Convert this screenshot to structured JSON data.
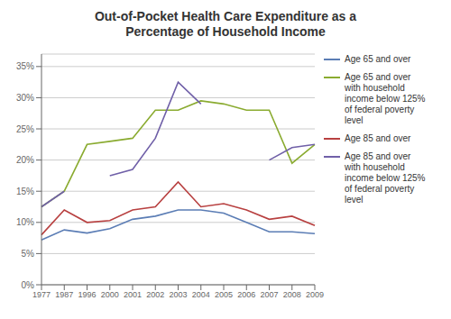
{
  "chart_data": {
    "type": "line",
    "title": "Out-of-Pocket Health Care Expenditure as a\nPercentage of Household Income",
    "categories": [
      "1977",
      "1987",
      "1996",
      "2000",
      "2001",
      "2002",
      "2003",
      "2004",
      "2005",
      "2006",
      "2007",
      "2008",
      "2009"
    ],
    "series": [
      {
        "name": "Age 65 and over",
        "color": "#5b7db5",
        "values": [
          7.2,
          8.8,
          8.3,
          9.0,
          10.5,
          11.0,
          12.0,
          12.0,
          11.5,
          10.0,
          8.5,
          8.5,
          8.2
        ]
      },
      {
        "name": "Age 65 and over\nwith household\nincome below 125%\nof federal poverty\nlevel",
        "color": "#8aab30",
        "values": [
          12.5,
          15.0,
          22.5,
          23.0,
          23.5,
          28.0,
          28.0,
          29.5,
          29.0,
          28.0,
          28.0,
          19.5,
          22.5
        ]
      },
      {
        "name": "Age 85 and over",
        "color": "#b84040",
        "values": [
          8.0,
          12.0,
          10.0,
          10.3,
          12.0,
          12.5,
          16.5,
          12.5,
          13.0,
          12.0,
          10.5,
          11.0,
          9.5
        ]
      },
      {
        "name": "Age 85 and over\nwith household\nincome below 125%\nof federal poverty\nlevel",
        "color": "#7060a8",
        "values": [
          12.5,
          15.0,
          null,
          17.5,
          18.5,
          23.5,
          32.5,
          29.0,
          null,
          null,
          20.0,
          22.0,
          22.5
        ]
      }
    ],
    "ylim": [
      0,
      37
    ],
    "yticks": [
      {
        "value": 0,
        "label": "0%"
      },
      {
        "value": 5,
        "label": "5%"
      },
      {
        "value": 10,
        "label": "10%"
      },
      {
        "value": 15,
        "label": "15%"
      },
      {
        "value": 20,
        "label": "20%"
      },
      {
        "value": 25,
        "label": "25%"
      },
      {
        "value": 30,
        "label": "30%"
      },
      {
        "value": 35,
        "label": "35%"
      }
    ],
    "grid": true,
    "legend": "right"
  }
}
